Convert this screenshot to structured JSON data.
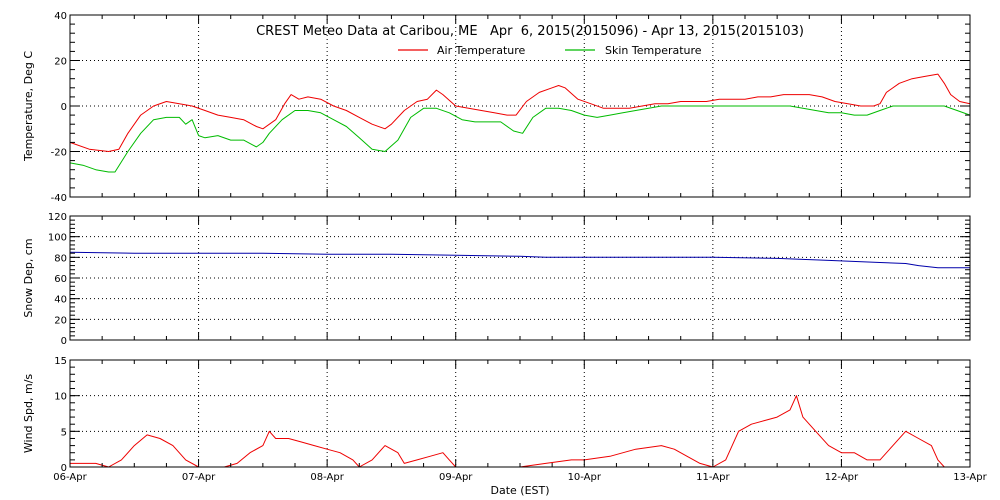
{
  "chart_data": {
    "type": "line",
    "title": "CREST Meteo Data at Caribou, ME   Apr  6, 2015(2015096) - Apr 13, 2015(2015103)",
    "xlabel": "Date (EST)",
    "x_tick_labels": [
      "06-Apr",
      "07-Apr",
      "08-Apr",
      "09-Apr",
      "10-Apr",
      "11-Apr",
      "12-Apr",
      "13-Apr"
    ],
    "x_range_days": [
      0,
      7
    ],
    "grid": true,
    "legend_position": "top",
    "panels": [
      {
        "ylabel": "Temperature, Deg C",
        "ylim": [
          -40,
          40
        ],
        "yticks": [
          -40,
          -20,
          0,
          20,
          40
        ],
        "series": [
          {
            "name": "Air Temperature",
            "color": "#ee0000",
            "points": [
              [
                0,
                -16
              ],
              [
                0.15,
                -19
              ],
              [
                0.3,
                -20
              ],
              [
                0.38,
                -19
              ],
              [
                0.45,
                -12
              ],
              [
                0.55,
                -4
              ],
              [
                0.65,
                0
              ],
              [
                0.75,
                2
              ],
              [
                0.85,
                1
              ],
              [
                0.95,
                0
              ],
              [
                1.05,
                -2
              ],
              [
                1.15,
                -4
              ],
              [
                1.25,
                -5
              ],
              [
                1.35,
                -6
              ],
              [
                1.45,
                -9
              ],
              [
                1.5,
                -10
              ],
              [
                1.6,
                -6
              ],
              [
                1.67,
                1
              ],
              [
                1.72,
                5
              ],
              [
                1.78,
                3
              ],
              [
                1.85,
                4
              ],
              [
                1.95,
                3
              ],
              [
                2.05,
                0
              ],
              [
                2.15,
                -2
              ],
              [
                2.25,
                -5
              ],
              [
                2.35,
                -8
              ],
              [
                2.45,
                -10
              ],
              [
                2.5,
                -8
              ],
              [
                2.6,
                -2
              ],
              [
                2.7,
                2
              ],
              [
                2.78,
                3
              ],
              [
                2.85,
                7
              ],
              [
                2.9,
                5
              ],
              [
                3.0,
                0
              ],
              [
                3.1,
                -1
              ],
              [
                3.2,
                -2
              ],
              [
                3.3,
                -3
              ],
              [
                3.4,
                -4
              ],
              [
                3.47,
                -4
              ],
              [
                3.55,
                2
              ],
              [
                3.65,
                6
              ],
              [
                3.75,
                8
              ],
              [
                3.8,
                9
              ],
              [
                3.85,
                8
              ],
              [
                3.95,
                3
              ],
              [
                4.05,
                1
              ],
              [
                4.15,
                -1
              ],
              [
                4.25,
                -1
              ],
              [
                4.35,
                -1
              ],
              [
                4.45,
                0
              ],
              [
                4.55,
                1
              ],
              [
                4.65,
                1
              ],
              [
                4.75,
                2
              ],
              [
                4.85,
                2
              ],
              [
                4.95,
                2
              ],
              [
                5.05,
                3
              ],
              [
                5.15,
                3
              ],
              [
                5.25,
                3
              ],
              [
                5.35,
                4
              ],
              [
                5.45,
                4
              ],
              [
                5.55,
                5
              ],
              [
                5.65,
                5
              ],
              [
                5.75,
                5
              ],
              [
                5.85,
                4
              ],
              [
                5.95,
                2
              ],
              [
                6.05,
                1
              ],
              [
                6.15,
                0
              ],
              [
                6.25,
                0
              ],
              [
                6.3,
                1
              ],
              [
                6.35,
                6
              ],
              [
                6.45,
                10
              ],
              [
                6.55,
                12
              ],
              [
                6.65,
                13
              ],
              [
                6.75,
                14
              ],
              [
                6.8,
                10
              ],
              [
                6.85,
                5
              ],
              [
                6.92,
                2
              ],
              [
                7.0,
                1
              ]
            ]
          },
          {
            "name": "Skin Temperature",
            "color": "#00bb00",
            "points": [
              [
                0,
                -25
              ],
              [
                0.1,
                -26
              ],
              [
                0.2,
                -28
              ],
              [
                0.3,
                -29
              ],
              [
                0.35,
                -29
              ],
              [
                0.45,
                -20
              ],
              [
                0.55,
                -12
              ],
              [
                0.65,
                -6
              ],
              [
                0.75,
                -5
              ],
              [
                0.85,
                -5
              ],
              [
                0.9,
                -8
              ],
              [
                0.95,
                -6
              ],
              [
                1.0,
                -13
              ],
              [
                1.05,
                -14
              ],
              [
                1.15,
                -13
              ],
              [
                1.25,
                -15
              ],
              [
                1.35,
                -15
              ],
              [
                1.45,
                -18
              ],
              [
                1.5,
                -16
              ],
              [
                1.55,
                -12
              ],
              [
                1.65,
                -6
              ],
              [
                1.75,
                -2
              ],
              [
                1.85,
                -2
              ],
              [
                1.95,
                -3
              ],
              [
                2.05,
                -6
              ],
              [
                2.15,
                -9
              ],
              [
                2.25,
                -14
              ],
              [
                2.35,
                -19
              ],
              [
                2.45,
                -20
              ],
              [
                2.55,
                -15
              ],
              [
                2.65,
                -5
              ],
              [
                2.75,
                -1
              ],
              [
                2.85,
                -1
              ],
              [
                2.95,
                -3
              ],
              [
                3.05,
                -6
              ],
              [
                3.15,
                -7
              ],
              [
                3.25,
                -7
              ],
              [
                3.35,
                -7
              ],
              [
                3.45,
                -11
              ],
              [
                3.52,
                -12
              ],
              [
                3.6,
                -5
              ],
              [
                3.7,
                -1
              ],
              [
                3.8,
                -1
              ],
              [
                3.9,
                -2
              ],
              [
                4.0,
                -4
              ],
              [
                4.1,
                -5
              ],
              [
                4.2,
                -4
              ],
              [
                4.3,
                -3
              ],
              [
                4.4,
                -2
              ],
              [
                4.5,
                -1
              ],
              [
                4.6,
                0
              ],
              [
                4.7,
                0
              ],
              [
                4.8,
                0
              ],
              [
                4.9,
                0
              ],
              [
                5.0,
                0
              ],
              [
                5.1,
                0
              ],
              [
                5.2,
                0
              ],
              [
                5.3,
                0
              ],
              [
                5.4,
                0
              ],
              [
                5.5,
                0
              ],
              [
                5.6,
                0
              ],
              [
                5.7,
                -1
              ],
              [
                5.8,
                -2
              ],
              [
                5.9,
                -3
              ],
              [
                6.0,
                -3
              ],
              [
                6.1,
                -4
              ],
              [
                6.2,
                -4
              ],
              [
                6.3,
                -2
              ],
              [
                6.4,
                0
              ],
              [
                6.5,
                0
              ],
              [
                6.6,
                0
              ],
              [
                6.7,
                0
              ],
              [
                6.8,
                0
              ],
              [
                6.9,
                -2
              ],
              [
                7.0,
                -4
              ]
            ]
          }
        ]
      },
      {
        "ylabel": "Snow Dep, cm",
        "ylim": [
          0,
          120
        ],
        "yticks": [
          0,
          20,
          40,
          60,
          80,
          100,
          120
        ],
        "series": [
          {
            "name": "",
            "color": "#0000aa",
            "points": [
              [
                0,
                85
              ],
              [
                0.5,
                84
              ],
              [
                1.0,
                84
              ],
              [
                1.5,
                84
              ],
              [
                2.0,
                83
              ],
              [
                2.5,
                83
              ],
              [
                3.0,
                82
              ],
              [
                3.5,
                81
              ],
              [
                3.7,
                80
              ],
              [
                4.0,
                80
              ],
              [
                4.5,
                80
              ],
              [
                5.0,
                80
              ],
              [
                5.5,
                79
              ],
              [
                5.9,
                77
              ],
              [
                6.3,
                75
              ],
              [
                6.5,
                74
              ],
              [
                6.6,
                72
              ],
              [
                6.75,
                70
              ],
              [
                7.0,
                70
              ]
            ]
          }
        ]
      },
      {
        "ylabel": "Wind Spd, m/s",
        "ylim": [
          0,
          15
        ],
        "yticks": [
          0,
          5,
          10,
          15
        ],
        "series": [
          {
            "name": "",
            "color": "#ee0000",
            "points": [
              [
                0,
                0.5
              ],
              [
                0.2,
                0.5
              ],
              [
                0.3,
                0
              ],
              [
                0.4,
                1
              ],
              [
                0.5,
                3
              ],
              [
                0.6,
                4.5
              ],
              [
                0.7,
                4
              ],
              [
                0.8,
                3
              ],
              [
                0.9,
                1
              ],
              [
                1.0,
                0
              ],
              [
                1.2,
                0
              ],
              [
                1.3,
                0.5
              ],
              [
                1.4,
                2
              ],
              [
                1.5,
                3
              ],
              [
                1.55,
                5
              ],
              [
                1.6,
                4
              ],
              [
                1.7,
                4
              ],
              [
                1.8,
                3.5
              ],
              [
                1.9,
                3
              ],
              [
                2.0,
                2.5
              ],
              [
                2.1,
                2
              ],
              [
                2.2,
                1
              ],
              [
                2.25,
                0
              ],
              [
                2.35,
                1
              ],
              [
                2.45,
                3
              ],
              [
                2.55,
                2
              ],
              [
                2.6,
                0.5
              ],
              [
                2.7,
                1
              ],
              [
                2.8,
                1.5
              ],
              [
                2.9,
                2
              ],
              [
                2.95,
                1
              ],
              [
                3.0,
                0
              ],
              [
                3.3,
                0
              ],
              [
                3.5,
                0
              ],
              [
                3.7,
                0.5
              ],
              [
                3.9,
                1
              ],
              [
                4.0,
                1
              ],
              [
                4.2,
                1.5
              ],
              [
                4.4,
                2.5
              ],
              [
                4.6,
                3
              ],
              [
                4.7,
                2.5
              ],
              [
                4.8,
                1.5
              ],
              [
                4.9,
                0.5
              ],
              [
                5.0,
                0
              ],
              [
                5.1,
                1
              ],
              [
                5.2,
                5
              ],
              [
                5.3,
                6
              ],
              [
                5.4,
                6.5
              ],
              [
                5.5,
                7
              ],
              [
                5.6,
                8
              ],
              [
                5.65,
                10
              ],
              [
                5.7,
                7
              ],
              [
                5.8,
                5
              ],
              [
                5.9,
                3
              ],
              [
                6.0,
                2
              ],
              [
                6.1,
                2
              ],
              [
                6.2,
                1
              ],
              [
                6.3,
                1
              ],
              [
                6.4,
                3
              ],
              [
                6.5,
                5
              ],
              [
                6.6,
                4
              ],
              [
                6.7,
                3
              ],
              [
                6.75,
                1
              ],
              [
                6.8,
                0
              ],
              [
                7.0,
                0
              ]
            ]
          }
        ]
      }
    ]
  }
}
